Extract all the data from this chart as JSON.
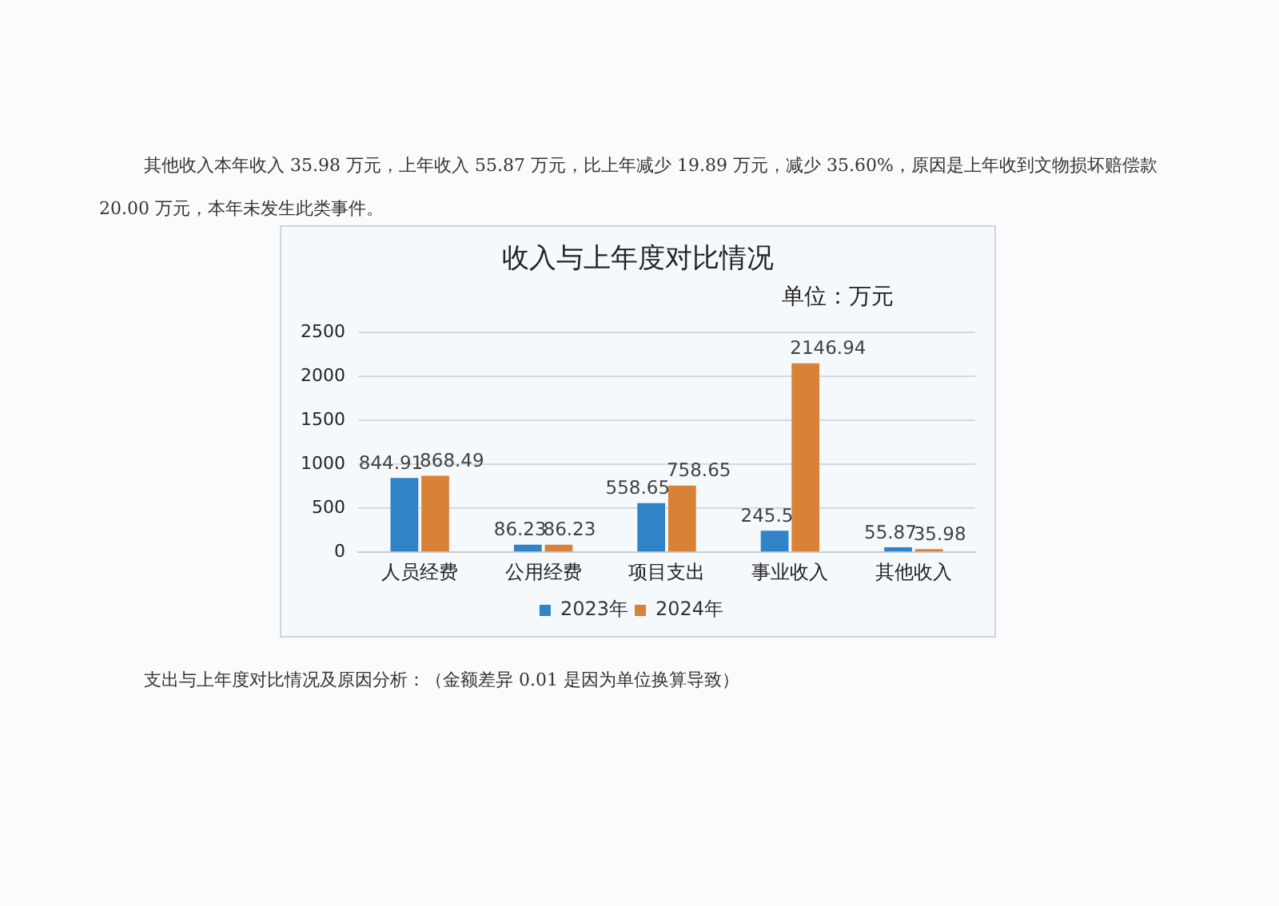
{
  "chart_data": {
    "type": "bar",
    "title": "收入与上年度对比情况",
    "subtitle": "单位：万元",
    "categories": [
      "人员经费",
      "公用经费",
      "项目支出",
      "事业收入",
      "其他收入"
    ],
    "series": [
      {
        "name": "2023年",
        "color": "#2f83c6",
        "values": [
          844.91,
          86.23,
          558.65,
          245.5,
          55.87
        ]
      },
      {
        "name": "2024年",
        "color": "#da8138",
        "values": [
          868.49,
          86.23,
          758.65,
          2146.94,
          35.98
        ]
      }
    ],
    "ylim": [
      0,
      2500
    ],
    "yticks": [
      0,
      500,
      1000,
      1500,
      2000,
      2500
    ],
    "grid": "y",
    "legend": "bottom",
    "data_labels": true,
    "annotations": [
      "其他收入本年收入 35.98 万元，上年收入 55.87 万元，比上年减少 19.89 万元，减少 35.60%，原因是上年收到文物损坏赔偿款 20.00 万元，本年未发生此类事件。",
      "支出与上年度对比情况及原因分析：（金额差异 0.01 是因为单位换算导致）"
    ]
  }
}
